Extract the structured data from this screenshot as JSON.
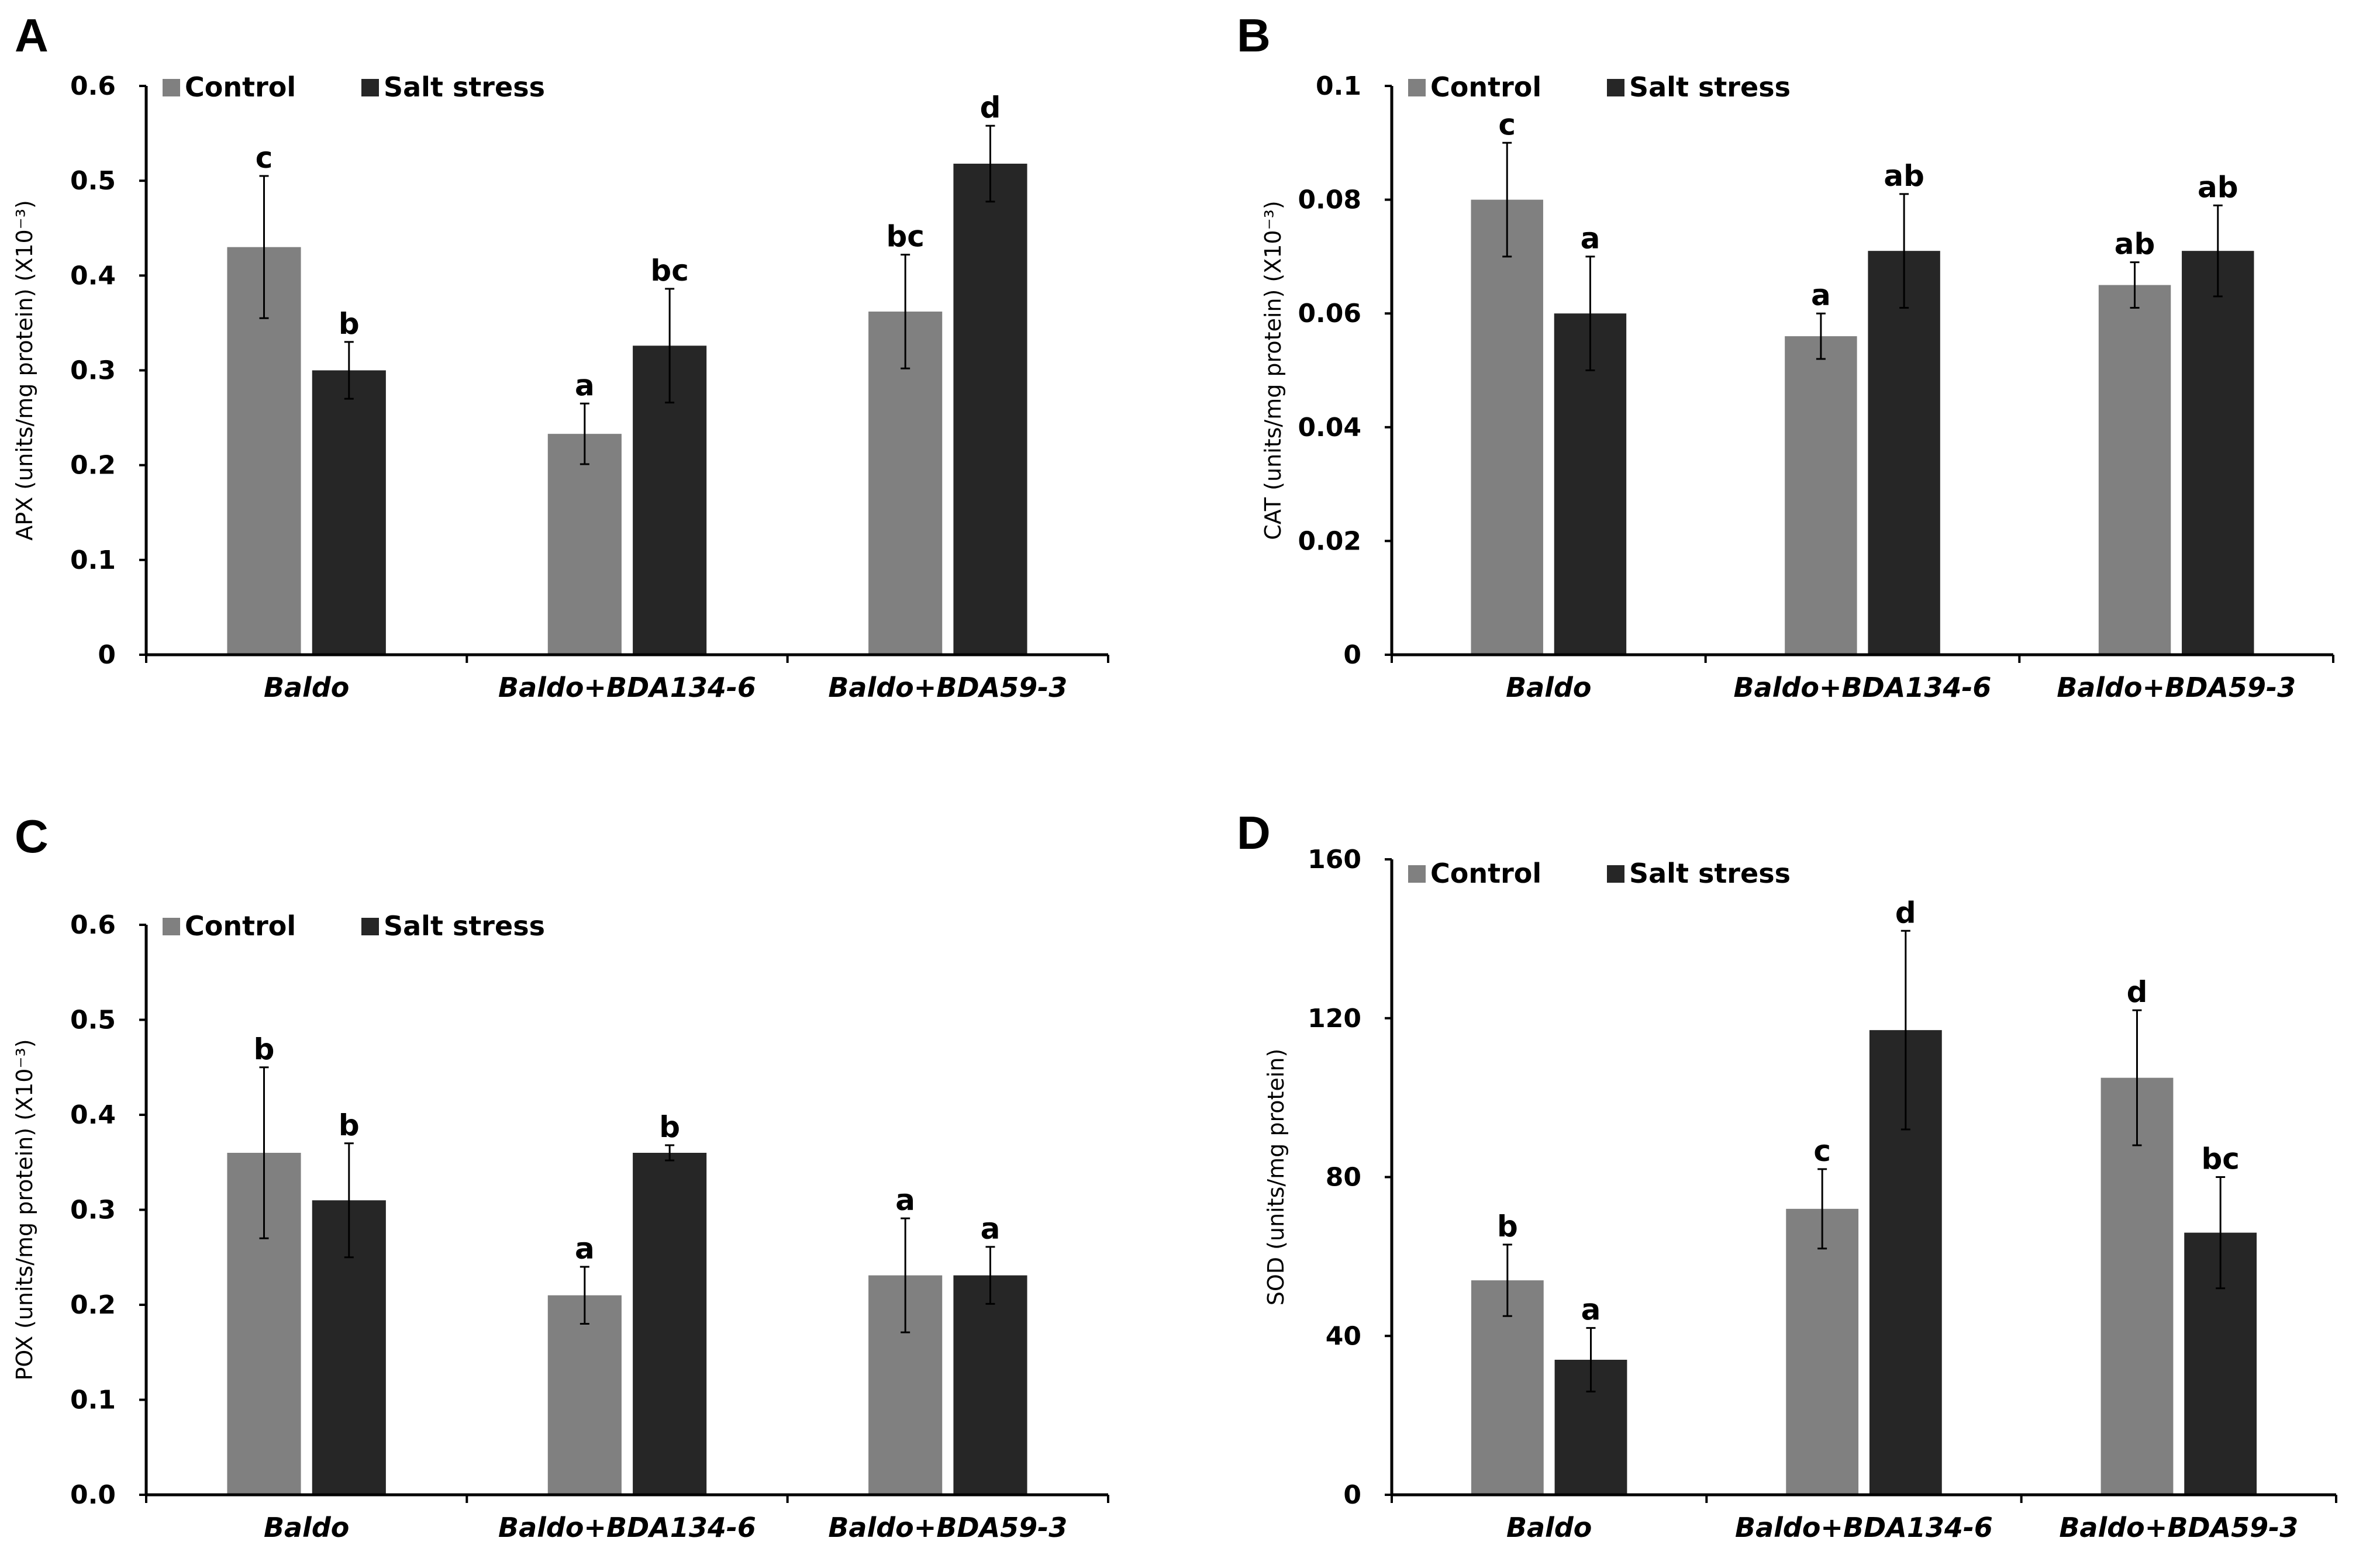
{
  "figure": {
    "colors": {
      "control": "#808080",
      "salt": "#262626"
    },
    "chart_data": [
      {
        "panel": "A",
        "type": "bar",
        "ylabel": "APX (units/mg protein) (X10⁻³)",
        "ylim": [
          0,
          0.6
        ],
        "yticks": [
          0,
          0.1,
          0.2,
          0.3,
          0.4,
          0.5,
          0.6
        ],
        "ytick_labels": [
          "0",
          "0.1",
          "0.2",
          "0.3",
          "0.4",
          "0.5",
          "0.6"
        ],
        "categories": [
          "Baldo",
          "Baldo+BDA134-6",
          "Baldo+BDA59-3"
        ],
        "legend": [
          "Control",
          "Salt stress"
        ],
        "series": [
          {
            "name": "Control",
            "values": [
              0.43,
              0.233,
              0.362
            ],
            "errors": [
              0.075,
              0.032,
              0.06
            ],
            "sig": [
              "c",
              "a",
              "bc"
            ]
          },
          {
            "name": "Salt stress",
            "values": [
              0.3,
              0.326,
              0.518
            ],
            "errors": [
              0.03,
              0.06,
              0.04
            ],
            "sig": [
              "b",
              "bc",
              "d"
            ]
          }
        ]
      },
      {
        "panel": "B",
        "type": "bar",
        "ylabel": "CAT (units/mg protein) (X10⁻³)",
        "ylim": [
          0,
          0.1
        ],
        "yticks": [
          0,
          0.02,
          0.04,
          0.06,
          0.08,
          0.1
        ],
        "ytick_labels": [
          "0",
          "0.02",
          "0.04",
          "0.06",
          "0.08",
          "0.1"
        ],
        "categories": [
          "Baldo",
          "Baldo+BDA134-6",
          "Baldo+BDA59-3"
        ],
        "legend": [
          "Control",
          "Salt stress"
        ],
        "series": [
          {
            "name": "Control",
            "values": [
              0.08,
              0.056,
              0.065
            ],
            "errors": [
              0.01,
              0.004,
              0.004
            ],
            "sig": [
              "c",
              "a",
              "ab"
            ]
          },
          {
            "name": "Salt stress",
            "values": [
              0.06,
              0.071,
              0.071
            ],
            "errors": [
              0.01,
              0.01,
              0.008
            ],
            "sig": [
              "a",
              "ab",
              "ab"
            ]
          }
        ]
      },
      {
        "panel": "C",
        "type": "bar",
        "ylabel": "POX (units/mg protein) (X10⁻³)",
        "ylim": [
          0,
          0.6
        ],
        "yticks": [
          0,
          0.1,
          0.2,
          0.3,
          0.4,
          0.5,
          0.6
        ],
        "ytick_labels": [
          "0.0",
          "0.1",
          "0.2",
          "0.3",
          "0.4",
          "0.5",
          "0.6"
        ],
        "categories": [
          "Baldo",
          "Baldo+BDA134-6",
          "Baldo+BDA59-3"
        ],
        "legend": [
          "Control",
          "Salt stress"
        ],
        "series": [
          {
            "name": "Control",
            "values": [
              0.36,
              0.21,
              0.231
            ],
            "errors": [
              0.09,
              0.03,
              0.06
            ],
            "sig": [
              "b",
              "a",
              "a"
            ]
          },
          {
            "name": "Salt stress",
            "values": [
              0.31,
              0.36,
              0.231
            ],
            "errors": [
              0.06,
              0.008,
              0.03
            ],
            "sig": [
              "b",
              "b",
              "a"
            ]
          }
        ]
      },
      {
        "panel": "D",
        "type": "bar",
        "ylabel": "SOD (units/mg protein)",
        "ylim": [
          0,
          160
        ],
        "yticks": [
          0,
          40,
          80,
          120,
          160
        ],
        "ytick_labels": [
          "0",
          "40",
          "80",
          "120",
          "160"
        ],
        "categories": [
          "Baldo",
          "Baldo+BDA134-6",
          "Baldo+BDA59-3"
        ],
        "legend": [
          "Control",
          "Salt stress"
        ],
        "series": [
          {
            "name": "Control",
            "values": [
              54,
              72,
              105
            ],
            "errors": [
              9,
              10,
              17
            ],
            "sig": [
              "b",
              "c",
              "d"
            ]
          },
          {
            "name": "Salt stress",
            "values": [
              34,
              117,
              66
            ],
            "errors": [
              8,
              25,
              14
            ],
            "sig": [
              "a",
              "d",
              "bc"
            ]
          }
        ]
      }
    ]
  }
}
